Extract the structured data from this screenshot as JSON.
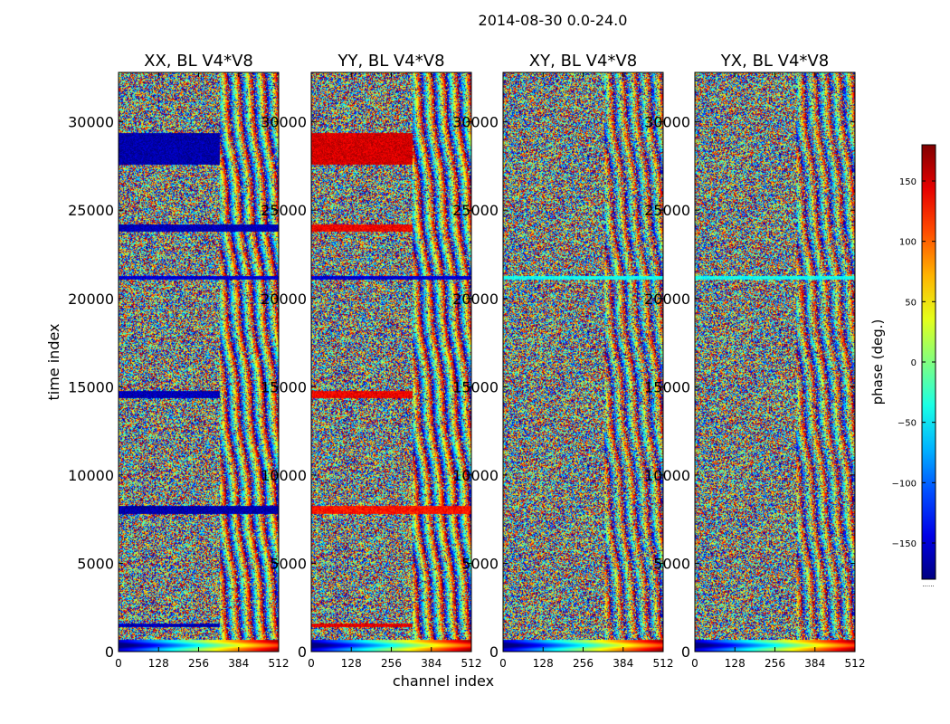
{
  "chart_data": {
    "type": "heatmap",
    "title": "2014-08-30 0.0-24.0",
    "xlabel": "channel index",
    "ylabel": "time index",
    "xlim": [
      0,
      512
    ],
    "ylim": [
      0,
      32800
    ],
    "xticks": [
      0,
      128,
      256,
      384,
      512
    ],
    "yticks": [
      0,
      5000,
      10000,
      15000,
      20000,
      25000,
      30000
    ],
    "colormap": "jet",
    "panels": [
      {
        "title": "XX, BL V4*V8",
        "horizontal_bands": [
          {
            "t0": 27600,
            "t1": 29400,
            "c0": 0,
            "c1": 322,
            "phase": -165
          },
          {
            "t0": 23800,
            "t1": 24200,
            "c0": 0,
            "c1": 512,
            "phase": -160
          },
          {
            "t0": 14400,
            "t1": 14800,
            "c0": 0,
            "c1": 322,
            "phase": -160
          },
          {
            "t0": 7800,
            "t1": 8300,
            "c0": 0,
            "c1": 512,
            "phase": -165
          },
          {
            "t0": 1400,
            "t1": 1600,
            "c0": 0,
            "c1": 322,
            "phase": -160
          },
          {
            "t0": 21100,
            "t1": 21300,
            "c0": 0,
            "c1": 512,
            "phase": -150
          }
        ]
      },
      {
        "title": "YY, BL V4*V8",
        "horizontal_bands": [
          {
            "t0": 27600,
            "t1": 29400,
            "c0": 0,
            "c1": 322,
            "phase": 150
          },
          {
            "t0": 23800,
            "t1": 24200,
            "c0": 0,
            "c1": 322,
            "phase": 140
          },
          {
            "t0": 14400,
            "t1": 14800,
            "c0": 0,
            "c1": 322,
            "phase": 140
          },
          {
            "t0": 7800,
            "t1": 8300,
            "c0": 0,
            "c1": 512,
            "phase": 130
          },
          {
            "t0": 1400,
            "t1": 1600,
            "c0": 0,
            "c1": 322,
            "phase": 145
          },
          {
            "t0": 21100,
            "t1": 21300,
            "c0": 0,
            "c1": 512,
            "phase": -150
          }
        ]
      },
      {
        "title": "XY, BL V4*V8",
        "horizontal_bands": [
          {
            "t0": 21100,
            "t1": 21300,
            "c0": 0,
            "c1": 512,
            "phase": -40
          }
        ]
      },
      {
        "title": "YX, BL V4*V8",
        "horizontal_bands": [
          {
            "t0": 21100,
            "t1": 21300,
            "c0": 0,
            "c1": 512,
            "phase": -40
          }
        ]
      }
    ],
    "colorbar": {
      "label": "phase (deg.)",
      "range": [
        -180,
        180
      ],
      "ticks": [
        -150,
        -100,
        -50,
        0,
        50,
        100,
        150
      ],
      "tick_labels": [
        "−150",
        "−100",
        "−50",
        "0",
        "50",
        "100",
        "150"
      ],
      "footer": "......"
    }
  }
}
